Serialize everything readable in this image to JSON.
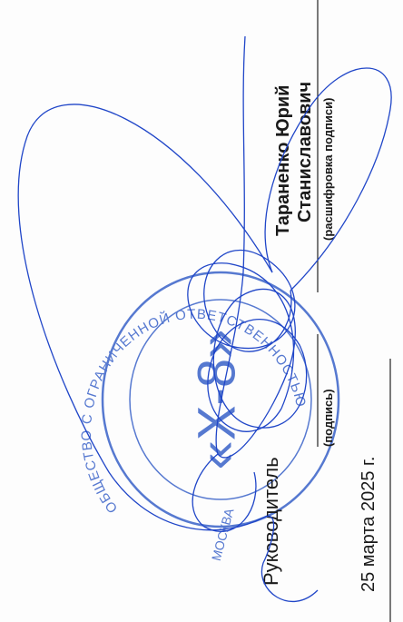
{
  "signature_block": {
    "position": "Руководитель",
    "signature_caption": "(подпись)",
    "name_line1": "Тараненко Юрий",
    "name_line2": "Станиславович",
    "name_caption": "(расшифровка подписи)",
    "date": "25 марта 2025 г."
  },
  "stamp": {
    "outer_text": "ОБЩЕСТВО С ОГРАНИЧЕННОЙ ОТВЕТСТВЕННОСТЬЮ",
    "city": "МОСКВА",
    "center_text": "«Х-8»"
  }
}
